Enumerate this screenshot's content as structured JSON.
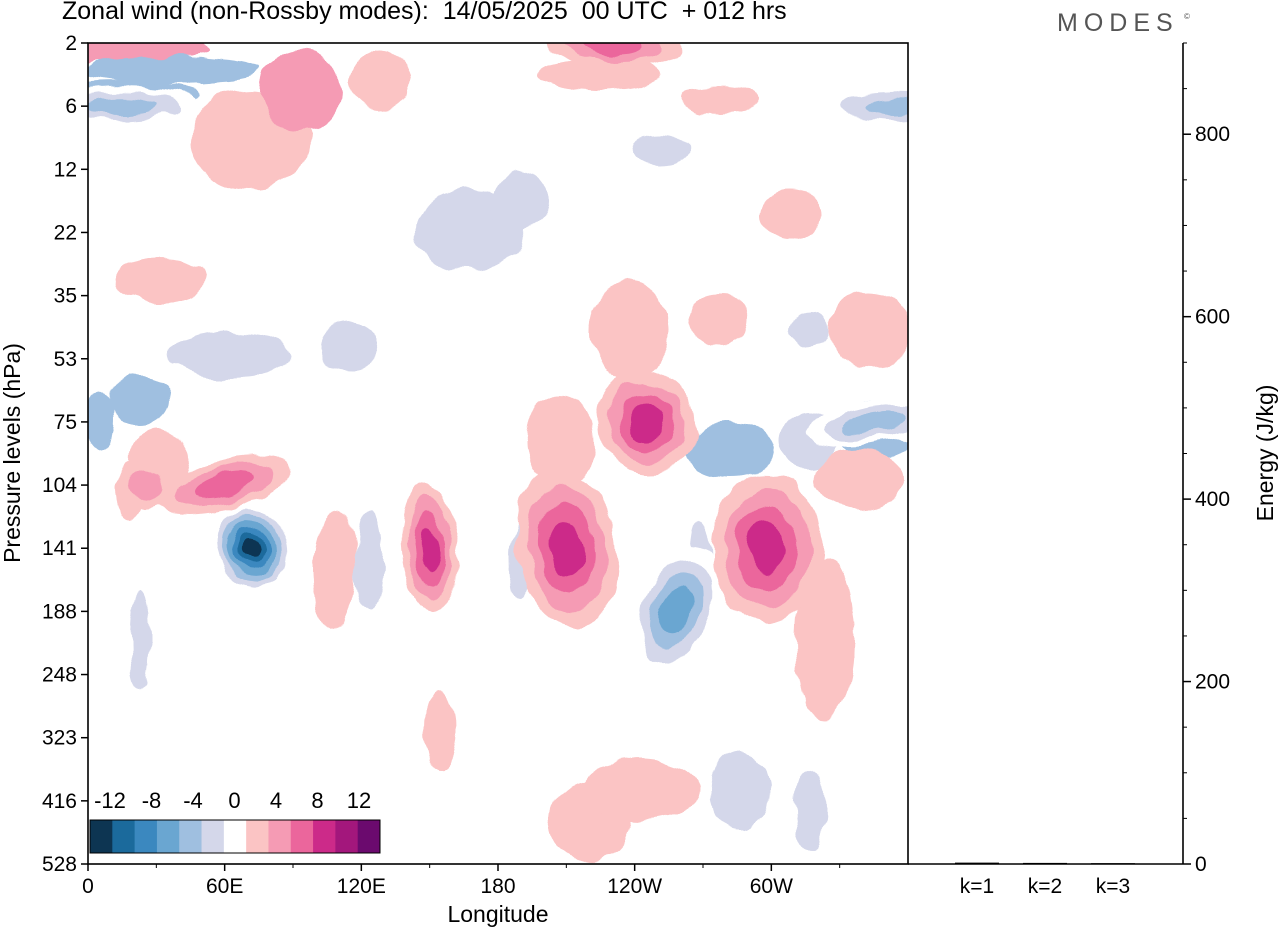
{
  "title": "Zonal wind (non-Rossby modes):  14/05/2025  00 UTC  + 012 hrs",
  "logo": "MODES",
  "logo_mark": "©",
  "chart_data": [
    {
      "type": "heatmap",
      "title": "Zonal wind (non-Rossby modes):  14/05/2025  00 UTC  + 012 hrs",
      "xlabel": "Longitude",
      "ylabel": "Pressure levels (hPa)",
      "x_ticks": [
        "0",
        "60E",
        "120E",
        "180",
        "120W",
        "60W"
      ],
      "x_tick_values": [
        0,
        60,
        120,
        180,
        240,
        300
      ],
      "xlim": [
        0,
        360
      ],
      "y_ticks": [
        "2",
        "6",
        "12",
        "22",
        "35",
        "53",
        "75",
        "104",
        "141",
        "188",
        "248",
        "323",
        "416",
        "528"
      ],
      "colorbar": {
        "labels": [
          "-12",
          "-8",
          "-4",
          "0",
          "4",
          "8",
          "12"
        ],
        "levels": [
          -14,
          -12,
          -10,
          -8,
          -6,
          -4,
          -2,
          2,
          4,
          6,
          8,
          10,
          12,
          14
        ],
        "colors": [
          "#0d3552",
          "#1b6a9c",
          "#3b88bf",
          "#6aa6d1",
          "#9fbfe0",
          "#d4d7ea",
          "#ffffff",
          "#fbc4c4",
          "#f59bb4",
          "#eb669c",
          "#cc2a89",
          "#a3177c",
          "#6b0a6e"
        ]
      },
      "features": [
        {
          "lon": 72,
          "level": "141",
          "value": -14
        },
        {
          "lon": 150,
          "level": "141",
          "value": 8
        },
        {
          "lon": 210,
          "level": "141",
          "value": 8
        },
        {
          "lon": 258,
          "level": "188",
          "value": -8
        },
        {
          "lon": 298,
          "level": "141",
          "value": 8
        },
        {
          "lon": 245,
          "level": "75",
          "value": 8
        },
        {
          "lon": 345,
          "level": "75",
          "value": -6
        },
        {
          "lon": 15,
          "level": "6",
          "value": -6
        },
        {
          "lon": 355,
          "level": "6",
          "value": -6
        },
        {
          "lon": 230,
          "level": "2",
          "value": 6
        },
        {
          "lon": 60,
          "level": "104",
          "value": 6
        },
        {
          "lon": 25,
          "level": "104",
          "value": 4
        }
      ]
    },
    {
      "type": "bar",
      "categories": [
        "k=1",
        "k=2",
        "k=3"
      ],
      "values": [
        1.5,
        1.2,
        0.9
      ],
      "ylabel": "Energy (J/kg)",
      "ylim": [
        0,
        900
      ],
      "y_ticks": [
        0,
        200,
        400,
        600,
        800
      ]
    }
  ]
}
